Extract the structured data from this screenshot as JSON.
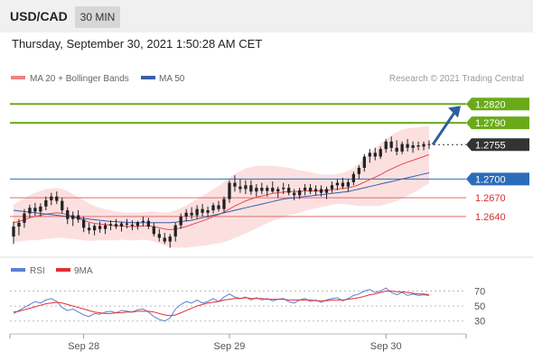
{
  "header": {
    "symbol": "USD/CAD",
    "interval": "30 MIN",
    "datetime": "Thursday, September 30, 2021 1:50:28 AM CET"
  },
  "legend": {
    "ma20_label": "MA 20 + Bollinger Bands",
    "ma50_label": "MA 50",
    "credit": "Research © 2021 Trading Central"
  },
  "rsi_legend": {
    "rsi_label": "RSI",
    "ma_label": "9MA"
  },
  "colors": {
    "candle": "#222222",
    "ma20": "#e84a4a",
    "ma50": "#3a5da8",
    "bands": "#fbd6d6",
    "resistance": "#6aaa18",
    "pivot": "#2b6cb8",
    "support": "#e06d6d",
    "current": "#333333",
    "rsi": "#5b7fd6",
    "rsi_ma": "#e03030",
    "arrow": "#2f5fa0"
  },
  "chart_data": [
    {
      "type": "candlestick",
      "title": "USD/CAD 30 MIN",
      "x_ticks": [
        "Sep 28",
        "Sep 29",
        "Sep 30"
      ],
      "ylim": [
        1.2585,
        1.2845
      ],
      "candles": [
        [
          1.2608,
          1.2632,
          1.2596,
          1.2624
        ],
        [
          1.2624,
          1.2636,
          1.261,
          1.263
        ],
        [
          1.263,
          1.2652,
          1.2622,
          1.2645
        ],
        [
          1.2645,
          1.2659,
          1.2638,
          1.2654
        ],
        [
          1.2654,
          1.2662,
          1.2641,
          1.2648
        ],
        [
          1.2648,
          1.2661,
          1.264,
          1.2656
        ],
        [
          1.2656,
          1.2672,
          1.265,
          1.2666
        ],
        [
          1.2666,
          1.2678,
          1.2658,
          1.2672
        ],
        [
          1.2672,
          1.268,
          1.266,
          1.2665
        ],
        [
          1.2665,
          1.267,
          1.2645,
          1.265
        ],
        [
          1.265,
          1.2655,
          1.2628,
          1.2636
        ],
        [
          1.2636,
          1.2648,
          1.2625,
          1.2642
        ],
        [
          1.2642,
          1.265,
          1.263,
          1.2635
        ],
        [
          1.2635,
          1.264,
          1.2615,
          1.2622
        ],
        [
          1.2622,
          1.263,
          1.2612,
          1.2618
        ],
        [
          1.2618,
          1.2628,
          1.261,
          1.2625
        ],
        [
          1.2625,
          1.2632,
          1.2614,
          1.262
        ],
        [
          1.262,
          1.263,
          1.2612,
          1.2626
        ],
        [
          1.2626,
          1.2634,
          1.2618,
          1.2628
        ],
        [
          1.2628,
          1.2636,
          1.262,
          1.2624
        ],
        [
          1.2624,
          1.2632,
          1.2616,
          1.2629
        ],
        [
          1.2629,
          1.2636,
          1.2621,
          1.2627
        ],
        [
          1.2627,
          1.2634,
          1.2618,
          1.2625
        ],
        [
          1.2625,
          1.2633,
          1.2619,
          1.2631
        ],
        [
          1.2631,
          1.264,
          1.2624,
          1.2633
        ],
        [
          1.2633,
          1.2638,
          1.262,
          1.2624
        ],
        [
          1.2624,
          1.263,
          1.2608,
          1.2612
        ],
        [
          1.2612,
          1.262,
          1.26,
          1.2606
        ],
        [
          1.2606,
          1.2614,
          1.2596,
          1.26
        ],
        [
          1.26,
          1.2612,
          1.259,
          1.2608
        ],
        [
          1.2608,
          1.263,
          1.26,
          1.2626
        ],
        [
          1.2626,
          1.2645,
          1.262,
          1.264
        ],
        [
          1.264,
          1.2652,
          1.2632,
          1.2646
        ],
        [
          1.2646,
          1.2655,
          1.2636,
          1.2642
        ],
        [
          1.2642,
          1.2658,
          1.2636,
          1.2652
        ],
        [
          1.2652,
          1.266,
          1.264,
          1.2646
        ],
        [
          1.2646,
          1.2656,
          1.2638,
          1.265
        ],
        [
          1.265,
          1.2662,
          1.2645,
          1.2658
        ],
        [
          1.2658,
          1.2665,
          1.2648,
          1.2652
        ],
        [
          1.2652,
          1.2672,
          1.2646,
          1.2668
        ],
        [
          1.2668,
          1.2698,
          1.2662,
          1.2694
        ],
        [
          1.2694,
          1.2706,
          1.268,
          1.2688
        ],
        [
          1.2688,
          1.27,
          1.2678,
          1.2684
        ],
        [
          1.2684,
          1.2698,
          1.2676,
          1.269
        ],
        [
          1.269,
          1.2698,
          1.2675,
          1.268
        ],
        [
          1.268,
          1.2692,
          1.2672,
          1.2686
        ],
        [
          1.2686,
          1.2694,
          1.2676,
          1.2681
        ],
        [
          1.2681,
          1.269,
          1.2672,
          1.2686
        ],
        [
          1.2686,
          1.2696,
          1.2678,
          1.268
        ],
        [
          1.268,
          1.2688,
          1.267,
          1.2684
        ],
        [
          1.2684,
          1.2694,
          1.2676,
          1.2686
        ],
        [
          1.2686,
          1.2692,
          1.2674,
          1.2678
        ],
        [
          1.2678,
          1.2684,
          1.2666,
          1.2674
        ],
        [
          1.2674,
          1.2686,
          1.2668,
          1.2682
        ],
        [
          1.2682,
          1.2692,
          1.2674,
          1.2686
        ],
        [
          1.2686,
          1.2692,
          1.2676,
          1.268
        ],
        [
          1.268,
          1.269,
          1.2674,
          1.2684
        ],
        [
          1.2684,
          1.269,
          1.2672,
          1.2678
        ],
        [
          1.2678,
          1.2688,
          1.2668,
          1.2684
        ],
        [
          1.2684,
          1.2696,
          1.2678,
          1.269
        ],
        [
          1.269,
          1.27,
          1.2682,
          1.2694
        ],
        [
          1.2694,
          1.2702,
          1.2684,
          1.2688
        ],
        [
          1.2688,
          1.27,
          1.268,
          1.2695
        ],
        [
          1.2695,
          1.2712,
          1.269,
          1.2708
        ],
        [
          1.2708,
          1.2722,
          1.27,
          1.2718
        ],
        [
          1.2718,
          1.274,
          1.2712,
          1.2736
        ],
        [
          1.2736,
          1.2748,
          1.2726,
          1.2742
        ],
        [
          1.2742,
          1.275,
          1.273,
          1.2736
        ],
        [
          1.2736,
          1.2752,
          1.2732,
          1.2748
        ],
        [
          1.2748,
          1.2764,
          1.2742,
          1.276
        ],
        [
          1.276,
          1.2768,
          1.2744,
          1.275
        ],
        [
          1.275,
          1.2762,
          1.2738,
          1.2744
        ],
        [
          1.2744,
          1.276,
          1.274,
          1.2756
        ],
        [
          1.2756,
          1.2764,
          1.2744,
          1.275
        ],
        [
          1.275,
          1.276,
          1.2742,
          1.2754
        ],
        [
          1.2754,
          1.276,
          1.2746,
          1.2752
        ],
        [
          1.2752,
          1.276,
          1.2746,
          1.2756
        ],
        [
          1.2756,
          1.2762,
          1.2748,
          1.2755
        ]
      ],
      "ma20": [
        1.263,
        1.2632,
        1.2635,
        1.2638,
        1.264,
        1.2642,
        1.2644,
        1.2645,
        1.2646,
        1.2645,
        1.2643,
        1.264,
        1.2637,
        1.2634,
        1.2631,
        1.2629,
        1.2628,
        1.2627,
        1.2626,
        1.2625,
        1.2625,
        1.2624,
        1.2624,
        1.2624,
        1.2625,
        1.2625,
        1.2624,
        1.2622,
        1.262,
        1.2619,
        1.262,
        1.2622,
        1.2624,
        1.2627,
        1.263,
        1.2633,
        1.2636,
        1.264,
        1.2643,
        1.2647,
        1.2652,
        1.2657,
        1.2661,
        1.2665,
        1.2668,
        1.2671,
        1.2673,
        1.2675,
        1.2677,
        1.2678,
        1.2679,
        1.268,
        1.268,
        1.268,
        1.2681,
        1.2681,
        1.2681,
        1.2681,
        1.2682,
        1.2683,
        1.2684,
        1.2685,
        1.2686,
        1.2688,
        1.2691,
        1.2695,
        1.2699,
        1.2703,
        1.2707,
        1.2712,
        1.2716,
        1.272,
        1.2724,
        1.2727,
        1.273,
        1.2733,
        1.2736,
        1.2739
      ],
      "ma50": [
        1.265,
        1.2649,
        1.2648,
        1.2647,
        1.2646,
        1.2645,
        1.2644,
        1.2643,
        1.2642,
        1.2641,
        1.264,
        1.2639,
        1.2638,
        1.2637,
        1.2636,
        1.2635,
        1.2634,
        1.2633,
        1.2632,
        1.2632,
        1.2631,
        1.2631,
        1.263,
        1.263,
        1.263,
        1.263,
        1.263,
        1.263,
        1.263,
        1.263,
        1.2631,
        1.2632,
        1.2633,
        1.2634,
        1.2636,
        1.2638,
        1.264,
        1.2642,
        1.2644,
        1.2646,
        1.2648,
        1.265,
        1.2652,
        1.2654,
        1.2656,
        1.2658,
        1.266,
        1.2662,
        1.2664,
        1.2666,
        1.2668,
        1.2669,
        1.267,
        1.2671,
        1.2672,
        1.2673,
        1.2674,
        1.2675,
        1.2676,
        1.2677,
        1.2678,
        1.2679,
        1.268,
        1.2682,
        1.2684,
        1.2686,
        1.2688,
        1.269,
        1.2692,
        1.2694,
        1.2696,
        1.2698,
        1.27,
        1.2702,
        1.2704,
        1.2706,
        1.2708,
        1.271
      ],
      "bb_width": [
        0.003,
        0.0032,
        0.0034,
        0.0036,
        0.0038,
        0.0039,
        0.004,
        0.004,
        0.004,
        0.0039,
        0.0038,
        0.0036,
        0.0034,
        0.0032,
        0.003,
        0.0028,
        0.0026,
        0.0025,
        0.0024,
        0.0023,
        0.0022,
        0.0022,
        0.0022,
        0.0022,
        0.0022,
        0.0023,
        0.0024,
        0.0025,
        0.0026,
        0.0028,
        0.003,
        0.0032,
        0.0034,
        0.0036,
        0.0038,
        0.004,
        0.0042,
        0.0044,
        0.0046,
        0.0048,
        0.005,
        0.0051,
        0.0052,
        0.0052,
        0.0051,
        0.005,
        0.0048,
        0.0046,
        0.0044,
        0.0042,
        0.004,
        0.0038,
        0.0036,
        0.0034,
        0.0032,
        0.003,
        0.0028,
        0.0026,
        0.0025,
        0.0024,
        0.0024,
        0.0025,
        0.0027,
        0.003,
        0.0034,
        0.0038,
        0.0042,
        0.0046,
        0.005,
        0.0052,
        0.0054,
        0.0055,
        0.0055,
        0.0054,
        0.0052,
        0.005,
        0.0048,
        0.0046
      ],
      "levels": [
        {
          "label": "1.2820",
          "value": 1.282,
          "kind": "resistance"
        },
        {
          "label": "1.2790",
          "value": 1.279,
          "kind": "resistance"
        },
        {
          "label": "1.2755",
          "value": 1.2755,
          "kind": "current"
        },
        {
          "label": "1.2700",
          "value": 1.27,
          "kind": "pivot"
        },
        {
          "label": "1.2670",
          "value": 1.267,
          "kind": "support"
        },
        {
          "label": "1.2640",
          "value": 1.264,
          "kind": "support"
        }
      ]
    },
    {
      "type": "line",
      "title": "RSI",
      "y_ticks": [
        "70",
        "50",
        "30"
      ],
      "ylim": [
        20,
        85
      ],
      "series": [
        {
          "name": "RSI",
          "values": [
            40,
            44,
            48,
            52,
            56,
            54,
            58,
            60,
            56,
            48,
            44,
            46,
            42,
            38,
            36,
            40,
            39,
            42,
            43,
            41,
            44,
            43,
            42,
            45,
            46,
            42,
            36,
            32,
            30,
            34,
            46,
            52,
            56,
            54,
            58,
            54,
            56,
            60,
            56,
            62,
            66,
            62,
            60,
            62,
            58,
            61,
            58,
            60,
            57,
            59,
            60,
            56,
            54,
            58,
            60,
            56,
            58,
            55,
            58,
            60,
            61,
            57,
            60,
            64,
            66,
            70,
            72,
            68,
            70,
            74,
            68,
            65,
            68,
            64,
            66,
            64,
            65,
            64
          ]
        },
        {
          "name": "9MA",
          "values": [
            42,
            43,
            45,
            47,
            49,
            51,
            53,
            54,
            55,
            54,
            52,
            50,
            48,
            46,
            44,
            42,
            41,
            40,
            40,
            41,
            41,
            42,
            42,
            43,
            43,
            43,
            42,
            40,
            38,
            37,
            38,
            41,
            44,
            47,
            50,
            52,
            54,
            55,
            56,
            58,
            59,
            60,
            60,
            61,
            60,
            60,
            60,
            59,
            59,
            59,
            59,
            58,
            58,
            58,
            58,
            58,
            57,
            57,
            57,
            58,
            58,
            58,
            59,
            60,
            61,
            63,
            65,
            66,
            68,
            70,
            70,
            69,
            69,
            68,
            67,
            66,
            66,
            65
          ]
        }
      ]
    }
  ]
}
